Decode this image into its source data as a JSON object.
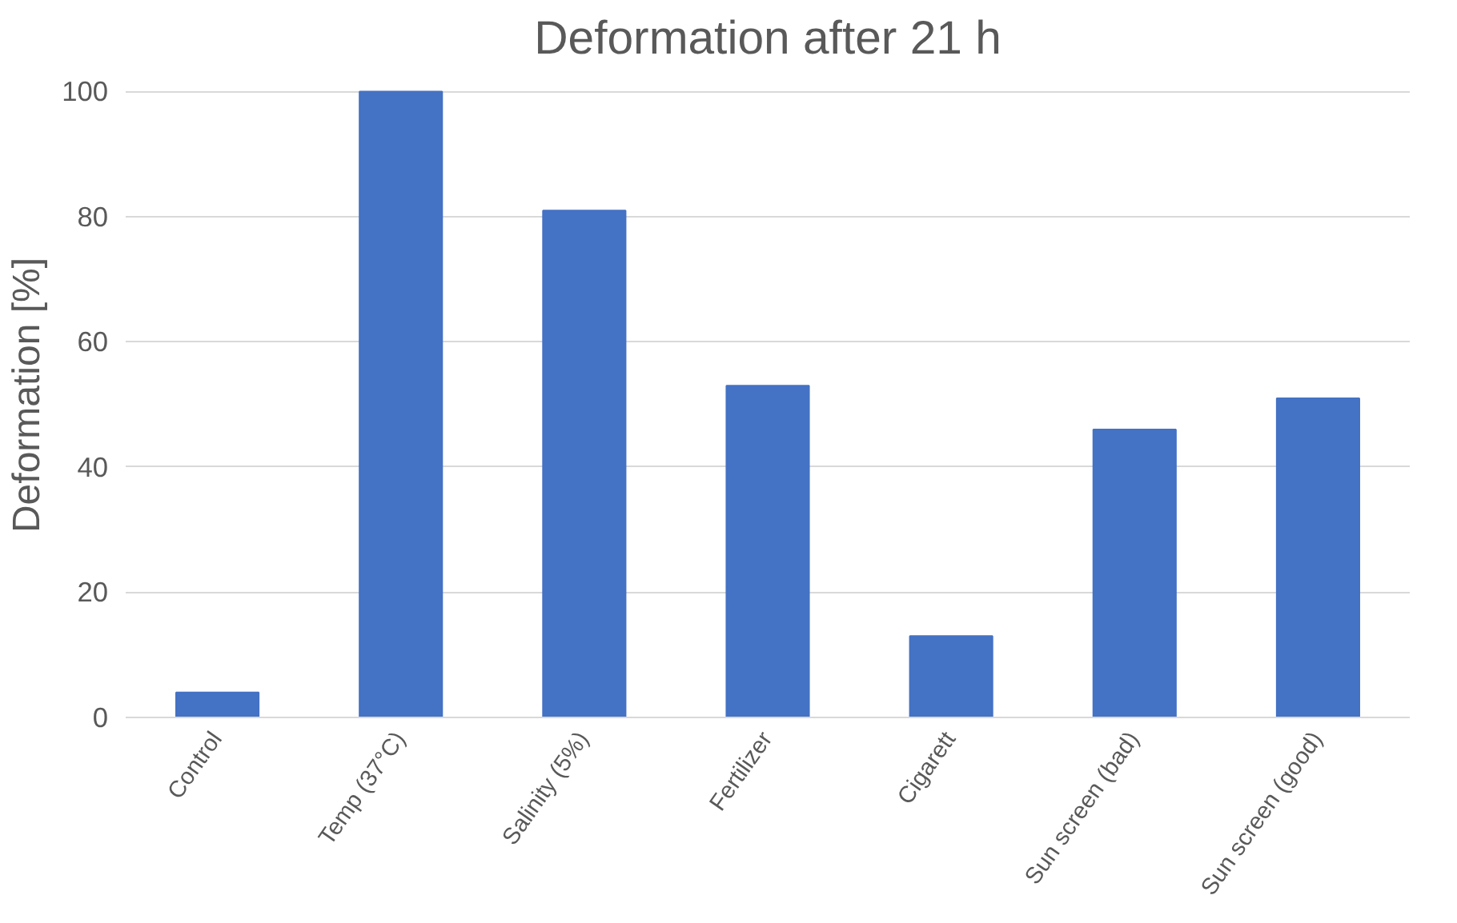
{
  "chart_data": {
    "type": "bar",
    "title": "Deformation after 21 h",
    "ylabel": "Deformation [%]",
    "categories": [
      "Control",
      "Temp (37°C)",
      "Salinity (5%)",
      "Fertilizer",
      "Cigarett",
      "Sun screen (bad)",
      "Sun screen (good)"
    ],
    "values": [
      4,
      100,
      81,
      53,
      13,
      46,
      51
    ],
    "color": "#4472c4",
    "ylim": [
      0,
      100
    ],
    "yticks": [
      0,
      20,
      40,
      60,
      80,
      100
    ],
    "grid": "y"
  }
}
